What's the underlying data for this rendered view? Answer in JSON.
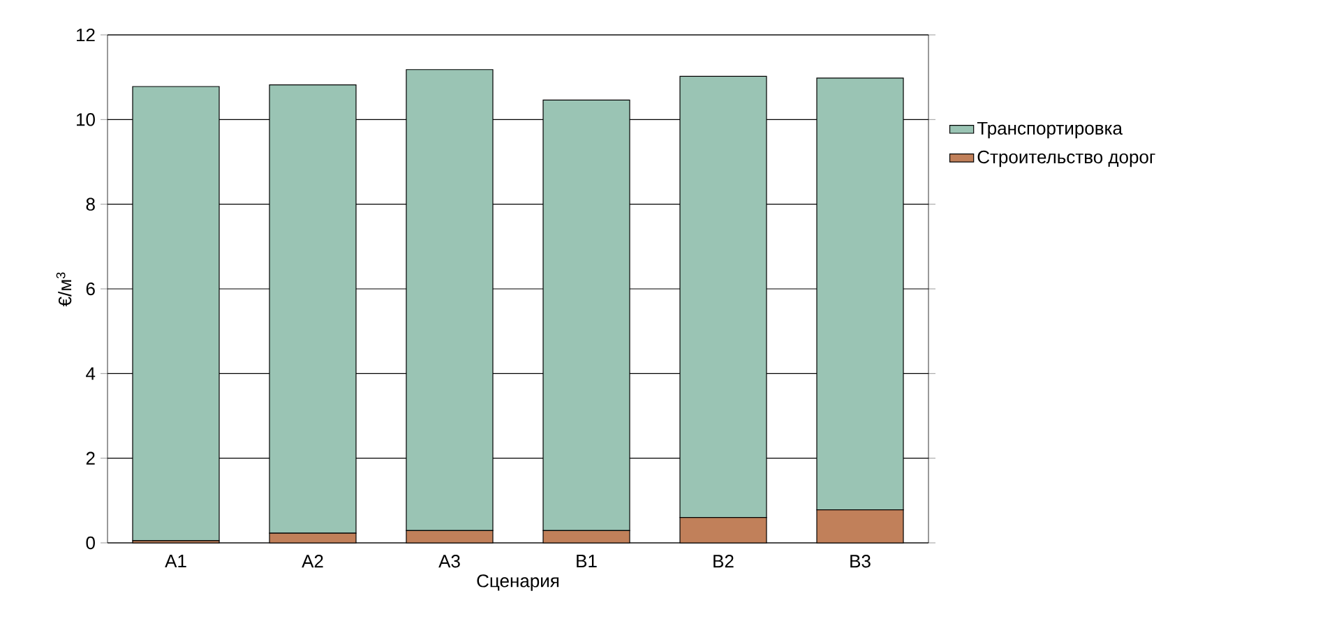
{
  "chart_data": {
    "type": "bar",
    "stacked": true,
    "xlabel": "Сценария",
    "ylabel": "€/м$^{3}$",
    "categories": [
      "A1",
      "A2",
      "A3",
      "B1",
      "B2",
      "B3"
    ],
    "series": [
      {
        "name": "Строительство дорог",
        "color": "#c1805a",
        "values": [
          0.05,
          0.23,
          0.29,
          0.29,
          0.6,
          0.78
        ]
      },
      {
        "name": "Транспортировка",
        "color": "#9ac4b4",
        "values": [
          10.73,
          10.59,
          10.89,
          10.17,
          10.42,
          10.2
        ]
      }
    ],
    "ylim": [
      0,
      12
    ],
    "yticks": [
      0,
      2,
      4,
      6,
      8,
      10,
      12
    ],
    "grid": "y",
    "legend": "right"
  }
}
